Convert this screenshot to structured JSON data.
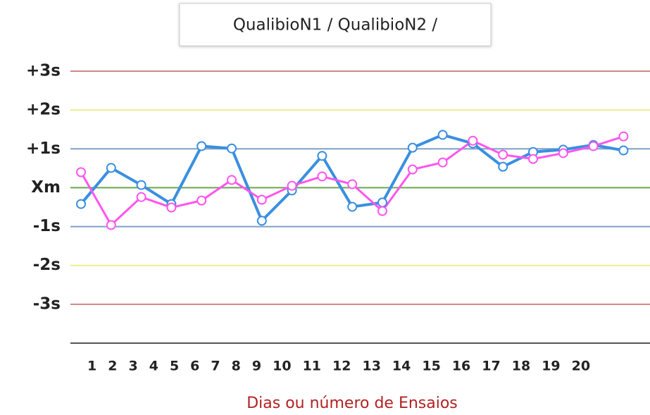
{
  "chart_data": {
    "type": "line",
    "title": "QualibioN1 / QualibioN2 /",
    "x_label": "Dias ou número de Ensaios",
    "categories": [
      "1",
      "2",
      "3",
      "4",
      "5",
      "6",
      "7",
      "8",
      "9",
      "10",
      "11",
      "12",
      "13",
      "14",
      "15",
      "16",
      "17",
      "18",
      "19",
      "20"
    ],
    "series": [
      {
        "color": "#3a8fe0",
        "values": [
          -0.42,
          0.51,
          0.07,
          -0.42,
          1.07,
          1.01,
          -0.85,
          -0.07,
          0.82,
          -0.49,
          -0.38,
          1.03,
          1.36,
          1.14,
          0.54,
          0.92,
          0.98,
          1.1,
          0.96,
          null
        ]
      },
      {
        "color": "#ff55ee",
        "values": [
          0.4,
          -0.96,
          -0.24,
          -0.51,
          -0.33,
          0.2,
          -0.31,
          0.05,
          0.29,
          0.09,
          -0.6,
          0.47,
          0.65,
          1.21,
          0.85,
          0.74,
          0.89,
          1.07,
          1.32,
          null
        ]
      }
    ],
    "ylim": [
      -4,
      3
    ],
    "yticks": [
      {
        "value": 3,
        "label": "+3s"
      },
      {
        "value": 2,
        "label": "+2s"
      },
      {
        "value": 1,
        "label": "+1s"
      },
      {
        "value": 0,
        "label": "Xm"
      },
      {
        "value": -1,
        "label": "-1s"
      },
      {
        "value": -2,
        "label": "-2s"
      },
      {
        "value": -3,
        "label": "-3s"
      }
    ],
    "grid_colors": [
      "#d08585",
      "#eded8a",
      "#7f9fc8",
      "#6aa84f",
      "#7f9fc8",
      "#eded8a",
      "#d08585"
    ],
    "grid": true
  }
}
